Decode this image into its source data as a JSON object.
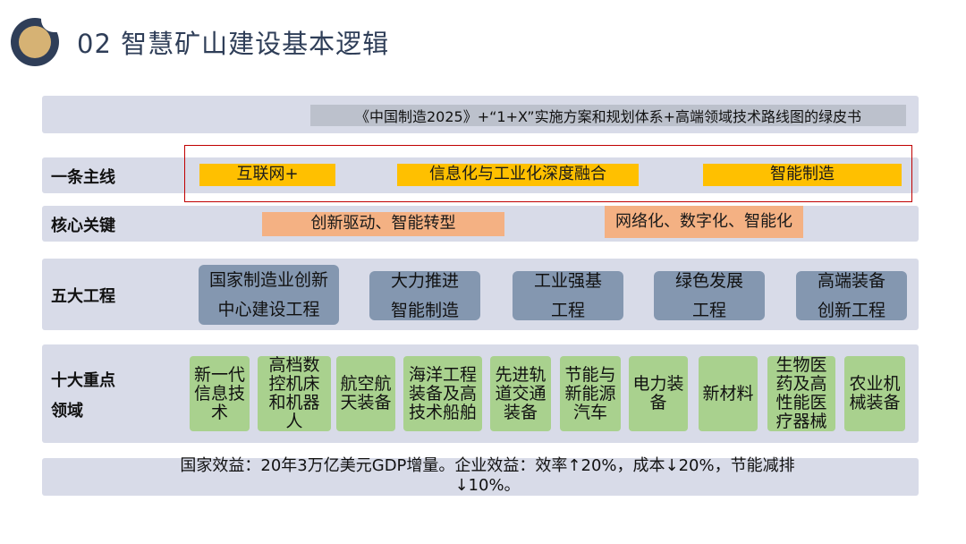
{
  "header": {
    "title": "02  智慧矿山建设基本逻辑"
  },
  "top_note": "《中国制造2025》+“1+X”实施方案和规划体系+高端领域技术路线图的绿皮书",
  "rows": {
    "main_line": {
      "label": "一条主线",
      "items": [
        "互联网+",
        "信息化与工业化深度融合",
        "智能制造"
      ]
    },
    "core_key": {
      "label": "核心关键",
      "items": [
        "创新驱动、智能转型",
        "网络化、数字化、智能化"
      ]
    },
    "five_projects": {
      "label": "五大工程",
      "items": [
        {
          "line1": "国家制造业创新",
          "line2": "中心建设工程"
        },
        {
          "line1": "大力推进",
          "line2": "智能制造"
        },
        {
          "line1": "工业强基",
          "line2": "工程"
        },
        {
          "line1": "绿色发展",
          "line2": "工程"
        },
        {
          "line1": "高端装备",
          "line2": "创新工程"
        }
      ]
    },
    "ten_fields": {
      "label_line1": "十大重点",
      "label_line2": "领域",
      "items": [
        "新一代信息技术",
        "高档数控机床和机器人",
        "航空航天装备",
        "海洋工程装备及高技术船舶",
        "先进轨道交通装备",
        "节能与新能源汽车",
        "电力装备",
        "新材料",
        "生物医药及高性能医疗器械",
        "农业机械装备"
      ]
    }
  },
  "benefit": {
    "line1": "国家效益：20年3万亿美元GDP增量。企业效益：效率↑20%，成本↓20%，节能减排",
    "line2": "↓10%。"
  },
  "colors": {
    "band": "#d8dbe8",
    "yellow": "#ffc000",
    "orange": "#f4b183",
    "gray_box": "#8497b0",
    "green_box": "#a9d18e",
    "red_frame": "#c00000",
    "title": "#2f3e58",
    "logo_gold": "#d6b274"
  }
}
